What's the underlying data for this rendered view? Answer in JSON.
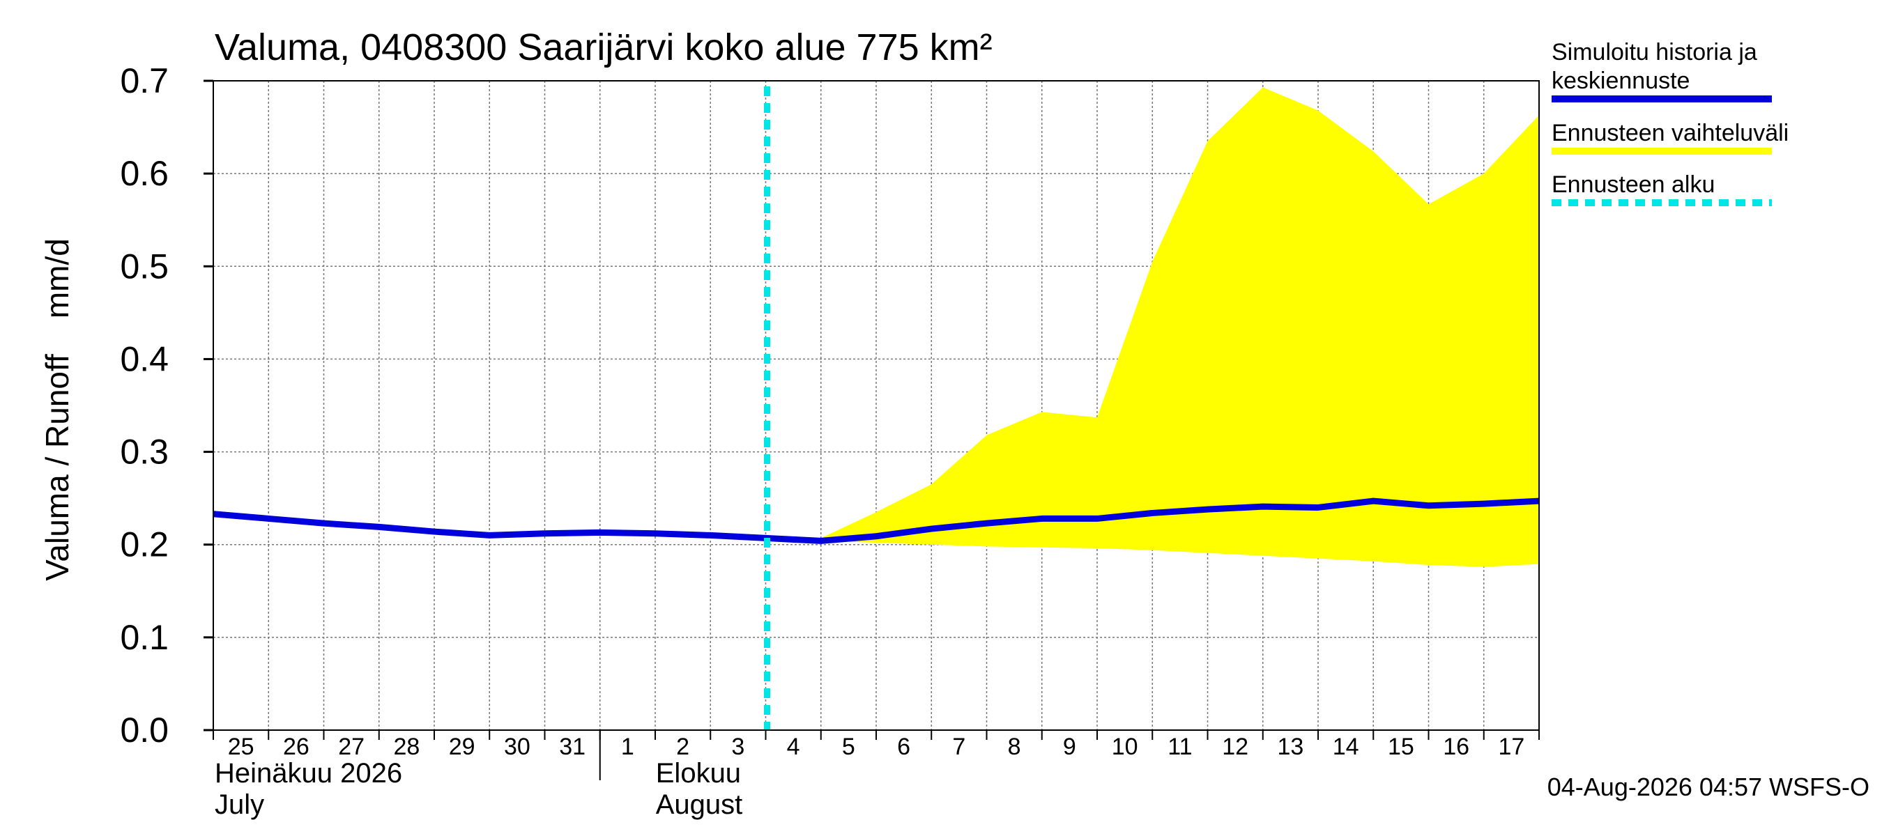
{
  "chart_data": {
    "type": "area",
    "title": "Valuma, 0408300 Saarijärvi koko alue 775 km²",
    "ylabel": "Valuma / Runoff    mm/d",
    "ylim": [
      0.0,
      0.7
    ],
    "yticks": [
      "0.0",
      "0.1",
      "0.2",
      "0.3",
      "0.4",
      "0.5",
      "0.6",
      "0.7"
    ],
    "x_start": "2026-07-25",
    "x_end": "2026-08-18",
    "day_labels": [
      "25",
      "26",
      "27",
      "28",
      "29",
      "30",
      "31",
      "1",
      "2",
      "3",
      "4",
      "5",
      "6",
      "7",
      "8",
      "9",
      "10",
      "11",
      "12",
      "13",
      "14",
      "15",
      "16",
      "17"
    ],
    "month_labels": [
      {
        "fi": "Heinäkuu  2026",
        "en": "July"
      },
      {
        "fi": "Elokuu",
        "en": "August"
      }
    ],
    "forecast_start": "2026-08-04",
    "history_color": "#0000dd",
    "band_color": "#ffff00",
    "forecast_line_color": "#00e5e5",
    "grid": true,
    "legend_position": "right",
    "legend": [
      {
        "key": "history",
        "label_lines": [
          "Simuloitu historia ja",
          "keskiennuste"
        ]
      },
      {
        "key": "band",
        "label_lines": [
          "Ennusteen vaihteluväli"
        ]
      },
      {
        "key": "forecast",
        "label_lines": [
          "Ennusteen alku"
        ]
      }
    ],
    "series": [
      {
        "name": "Simuloitu historia ja keskiennuste",
        "x": [
          "2026-07-25",
          "2026-07-26",
          "2026-07-27",
          "2026-07-28",
          "2026-07-29",
          "2026-07-30",
          "2026-07-31",
          "2026-08-01",
          "2026-08-02",
          "2026-08-03",
          "2026-08-04",
          "2026-08-05",
          "2026-08-06",
          "2026-08-07",
          "2026-08-08",
          "2026-08-09",
          "2026-08-10",
          "2026-08-11",
          "2026-08-12",
          "2026-08-13",
          "2026-08-14",
          "2026-08-15",
          "2026-08-16",
          "2026-08-17",
          "2026-08-18"
        ],
        "y": [
          0.233,
          0.228,
          0.223,
          0.219,
          0.214,
          0.21,
          0.212,
          0.213,
          0.212,
          0.21,
          0.207,
          0.204,
          0.209,
          0.217,
          0.223,
          0.228,
          0.228,
          0.234,
          0.238,
          0.241,
          0.24,
          0.247,
          0.242,
          0.244,
          0.247
        ]
      },
      {
        "name": "Ennusteen vaihteluväli",
        "x": [
          "2026-08-05",
          "2026-08-06",
          "2026-08-07",
          "2026-08-08",
          "2026-08-09",
          "2026-08-10",
          "2026-08-11",
          "2026-08-12",
          "2026-08-13",
          "2026-08-14",
          "2026-08-15",
          "2026-08-16",
          "2026-08-17",
          "2026-08-18"
        ],
        "upper": [
          0.207,
          0.235,
          0.265,
          0.318,
          0.343,
          0.337,
          0.505,
          0.635,
          0.693,
          0.668,
          0.624,
          0.567,
          0.6,
          0.663
        ],
        "lower": [
          0.204,
          0.202,
          0.2,
          0.198,
          0.197,
          0.196,
          0.194,
          0.191,
          0.188,
          0.185,
          0.182,
          0.178,
          0.176,
          0.179
        ]
      }
    ]
  },
  "footer": {
    "timestamp": "04-Aug-2026 04:57 WSFS-O"
  }
}
